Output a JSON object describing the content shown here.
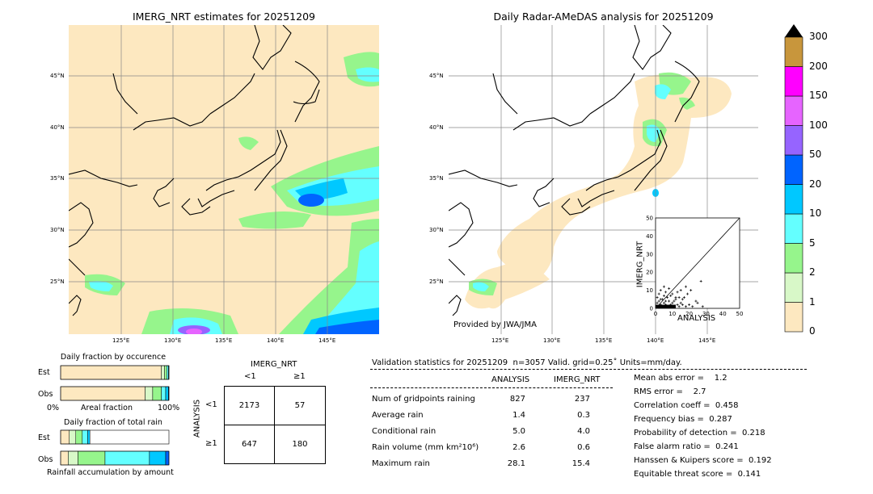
{
  "colors": {
    "land": "#fde8c0",
    "levels": [
      "#fde8c0",
      "#d8f8c8",
      "#96f58c",
      "#64ffff",
      "#00c8ff",
      "#0064ff",
      "#9664ff",
      "#e664ff",
      "#ff00ff",
      "#c8963c"
    ],
    "grid": "#888888"
  },
  "left_map": {
    "title": "IMERG_NRT estimates for 20251209",
    "lat_labels": [
      "45°N",
      "40°N",
      "35°N",
      "30°N",
      "25°N"
    ],
    "lon_labels": [
      "125°E",
      "130°E",
      "135°E",
      "140°E",
      "145°E"
    ]
  },
  "right_map": {
    "title": "Daily Radar-AMeDAS analysis for 20251209",
    "lat_labels": [
      "45°N",
      "40°N",
      "35°N",
      "30°N",
      "25°N"
    ],
    "lon_labels": [
      "125°E",
      "130°E",
      "135°E",
      "140°E",
      "145°E"
    ],
    "credit": "Provided by JWA/JMA"
  },
  "inset": {
    "xlabel": "ANALYSIS",
    "ylabel": "IMERG_NRT",
    "ticks": [
      "0",
      "10",
      "20",
      "30",
      "40",
      "50"
    ]
  },
  "colorbar": {
    "labels": [
      "0",
      "1",
      "2",
      "5",
      "10",
      "20",
      "50",
      "100",
      "150",
      "200",
      "300"
    ]
  },
  "occurrence": {
    "title": "Daily fraction by occurence",
    "est_label": "Est",
    "obs_label": "Obs",
    "axis_left": "0%",
    "axis_mid": "Areal fraction",
    "axis_right": "100%"
  },
  "total_rain": {
    "title": "Daily fraction of total rain",
    "est_label": "Est",
    "obs_label": "Obs",
    "axis_label": "Rainfall accumulation by amount"
  },
  "contingency": {
    "col_title": "IMERG_NRT",
    "col_lt": "<1",
    "col_ge": "≥1",
    "row_title": "ANALYSIS",
    "row_lt": "<1",
    "row_ge": "≥1",
    "a": "2173",
    "b": "57",
    "c": "647",
    "d": "180"
  },
  "validation": {
    "header": "Validation statistics for 20251209  n=3057 Valid. grid=0.25˚ Units=mm/day.",
    "col_analysis": "ANALYSIS",
    "col_imerg": "IMERG_NRT",
    "rows": [
      {
        "label": "Num of gridpoints raining",
        "analysis": "827",
        "imerg": "237"
      },
      {
        "label": "Average rain",
        "analysis": "1.4",
        "imerg": "0.3"
      },
      {
        "label": "Conditional rain",
        "analysis": "5.0",
        "imerg": "4.0"
      },
      {
        "label": "Rain volume (mm km²10⁶)",
        "analysis": "2.6",
        "imerg": "0.6"
      },
      {
        "label": "Maximum rain",
        "analysis": "28.1",
        "imerg": "15.4"
      }
    ],
    "scores": [
      "Mean abs error =    1.2",
      "RMS error =    2.7",
      "Correlation coeff =  0.458",
      "Frequency bias =  0.287",
      "Probability of detection =  0.218",
      "False alarm ratio =  0.241",
      "Hanssen & Kuipers score =  0.192",
      "Equitable threat score =  0.141"
    ]
  },
  "chart_data": [
    {
      "type": "scatter",
      "xlabel": "ANALYSIS",
      "ylabel": "IMERG_NRT",
      "xlim": [
        0,
        50
      ],
      "ylim": [
        0,
        50
      ],
      "points": [
        [
          1,
          1
        ],
        [
          2,
          0.5
        ],
        [
          3,
          2
        ],
        [
          4,
          1
        ],
        [
          5,
          3
        ],
        [
          6,
          2
        ],
        [
          7,
          1
        ],
        [
          8,
          4
        ],
        [
          9,
          2
        ],
        [
          10,
          3
        ],
        [
          11,
          1
        ],
        [
          12,
          5
        ],
        [
          13,
          2
        ],
        [
          14,
          1
        ],
        [
          15,
          3
        ],
        [
          16,
          2
        ],
        [
          17,
          6
        ],
        [
          18,
          1
        ],
        [
          20,
          2
        ],
        [
          22,
          1
        ],
        [
          25,
          3
        ],
        [
          28,
          1
        ],
        [
          2,
          8
        ],
        [
          3,
          10
        ],
        [
          5,
          7
        ],
        [
          6,
          9
        ],
        [
          8,
          11
        ],
        [
          10,
          8
        ],
        [
          12,
          6
        ],
        [
          13,
          9
        ],
        [
          15,
          10
        ],
        [
          18,
          12
        ],
        [
          21,
          10
        ],
        [
          24,
          4
        ],
        [
          27,
          15
        ],
        [
          4,
          5
        ],
        [
          7,
          6
        ],
        [
          9,
          7
        ],
        [
          11,
          4
        ],
        [
          14,
          6
        ],
        [
          16,
          5
        ],
        [
          19,
          8
        ],
        [
          1,
          3
        ],
        [
          2,
          4
        ],
        [
          3,
          5
        ],
        [
          1,
          6
        ],
        [
          5,
          12
        ],
        [
          6,
          4
        ]
      ]
    },
    {
      "type": "bar",
      "title": "Daily fraction by occurence",
      "categories": [
        "Est",
        "Obs"
      ],
      "series": [
        {
          "color": "#fde8c0",
          "values": [
            0.93,
            0.78
          ]
        },
        {
          "color": "#d8f8c8",
          "values": [
            0.03,
            0.07
          ]
        },
        {
          "color": "#96f58c",
          "values": [
            0.02,
            0.08
          ]
        },
        {
          "color": "#64ffff",
          "values": [
            0.015,
            0.04
          ]
        },
        {
          "color": "#00c8ff",
          "values": [
            0.005,
            0.025
          ]
        },
        {
          "color": "#0064ff",
          "values": [
            0.0,
            0.005
          ]
        }
      ]
    },
    {
      "type": "bar",
      "title": "Daily fraction of total rain",
      "categories": [
        "Est",
        "Obs"
      ],
      "series": [
        {
          "color": "#fde8c0",
          "values": [
            0.08,
            0.07
          ]
        },
        {
          "color": "#d8f8c8",
          "values": [
            0.06,
            0.09
          ]
        },
        {
          "color": "#96f58c",
          "values": [
            0.06,
            0.25
          ]
        },
        {
          "color": "#64ffff",
          "values": [
            0.05,
            0.41
          ]
        },
        {
          "color": "#00c8ff",
          "values": [
            0.02,
            0.15
          ]
        },
        {
          "color": "#0064ff",
          "values": [
            0.0,
            0.03
          ]
        }
      ]
    }
  ]
}
